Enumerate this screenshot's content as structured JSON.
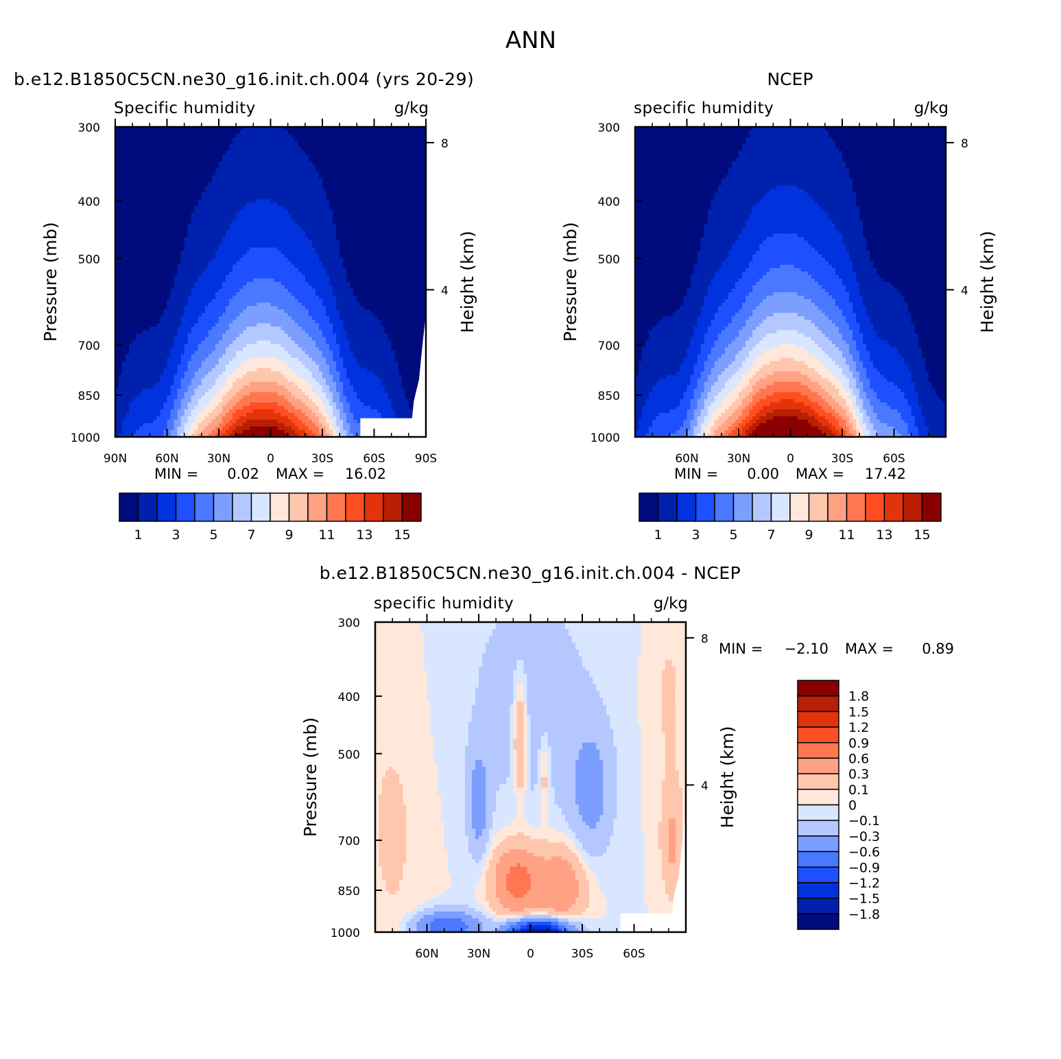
{
  "figure": {
    "title": "ANN"
  },
  "colors": {
    "seq": [
      "#000c7d",
      "#0021ae",
      "#0032de",
      "#1e50ff",
      "#4a78ff",
      "#7b9eff",
      "#b4c8ff",
      "#d8e6ff",
      "#ffe8da",
      "#ffc6ae",
      "#ffa284",
      "#ff7750",
      "#ff4f22",
      "#e3330b",
      "#b81f04",
      "#8a0000"
    ],
    "diff": [
      "#000c7d",
      "#0021ae",
      "#0032de",
      "#1e50ff",
      "#4a78ff",
      "#7b9eff",
      "#b4c8ff",
      "#d8e6ff",
      "#ffe8da",
      "#ffc6ae",
      "#ffa284",
      "#ff7750",
      "#ff4f22",
      "#e3330b",
      "#b81f04",
      "#8a0000"
    ]
  },
  "chart_data": [
    {
      "id": "model",
      "type": "heatmap",
      "title": "b.e12.B1850C5CN.ne30_g16.init.ch.004 (yrs 20-29)",
      "left_label": "Specific humidity",
      "units": "g/kg",
      "xlabel": "",
      "ylabel": "Pressure (mb)",
      "y2label": "Height (km)",
      "x_ticks": [
        "90N",
        "60N",
        "30N",
        "0",
        "30S",
        "60S",
        "90S"
      ],
      "x_tick_values": [
        90,
        60,
        30,
        0,
        -30,
        -60,
        -90
      ],
      "y_ticks": [
        "300",
        "400",
        "500",
        "700",
        "850",
        "1000"
      ],
      "y_tick_values": [
        300,
        400,
        500,
        700,
        850,
        1000
      ],
      "y2_ticks": [
        "8",
        "4"
      ],
      "y2_tick_values": [
        8,
        4
      ],
      "ylim": [
        1000,
        300
      ],
      "xlim": [
        90,
        -90
      ],
      "min_label": "MIN =",
      "min_value": "0.02",
      "max_label": "MAX =",
      "max_value": "16.02",
      "colorbar_labels": [
        "1",
        "3",
        "5",
        "7",
        "9",
        "11",
        "13",
        "15"
      ],
      "contour_levels": [
        1,
        2,
        3,
        4,
        5,
        6,
        7,
        8,
        9,
        10,
        11,
        12,
        13,
        14,
        15
      ],
      "field": {
        "kind": "q",
        "peak": 16.0,
        "scale_height": 0.42,
        "center_lat": 4,
        "lat_width": 38,
        "masked_topography": true
      }
    },
    {
      "id": "obs",
      "type": "heatmap",
      "title": "NCEP",
      "left_label": "specific humidity",
      "units": "g/kg",
      "xlabel": "",
      "ylabel": "Pressure (mb)",
      "y2label": "Height (km)",
      "x_ticks": [
        "60N",
        "30N",
        "0",
        "30S",
        "60S"
      ],
      "x_tick_values": [
        60,
        30,
        0,
        -30,
        -60
      ],
      "y_ticks": [
        "300",
        "400",
        "500",
        "700",
        "850",
        "1000"
      ],
      "y_tick_values": [
        300,
        400,
        500,
        700,
        850,
        1000
      ],
      "y2_ticks": [
        "8",
        "4"
      ],
      "y2_tick_values": [
        8,
        4
      ],
      "ylim": [
        1000,
        300
      ],
      "xlim": [
        90,
        -90
      ],
      "min_label": "MIN =",
      "min_value": "0.00",
      "max_label": "MAX =",
      "max_value": "17.42",
      "colorbar_labels": [
        "1",
        "3",
        "5",
        "7",
        "9",
        "11",
        "13",
        "15"
      ],
      "contour_levels": [
        1,
        2,
        3,
        4,
        5,
        6,
        7,
        8,
        9,
        10,
        11,
        12,
        13,
        14,
        15
      ],
      "field": {
        "kind": "q",
        "peak": 17.4,
        "scale_height": 0.43,
        "center_lat": 2,
        "lat_width": 40,
        "masked_topography": false
      }
    },
    {
      "id": "diff",
      "type": "heatmap",
      "title": "b.e12.B1850C5CN.ne30_g16.init.ch.004 - NCEP",
      "left_label": "specific humidity",
      "units": "g/kg",
      "xlabel": "",
      "ylabel": "Pressure (mb)",
      "y2label": "Height (km)",
      "x_ticks": [
        "60N",
        "30N",
        "0",
        "30S",
        "60S"
      ],
      "x_tick_values": [
        60,
        30,
        0,
        -30,
        -60
      ],
      "y_ticks": [
        "300",
        "400",
        "500",
        "700",
        "850",
        "1000"
      ],
      "y_tick_values": [
        300,
        400,
        500,
        700,
        850,
        1000
      ],
      "y2_ticks": [
        "8",
        "4"
      ],
      "y2_tick_values": [
        8,
        4
      ],
      "ylim": [
        1000,
        300
      ],
      "xlim": [
        90,
        -90
      ],
      "min_label": "MIN =",
      "min_value": "−2.10",
      "max_label": "MAX =",
      "max_value": "0.89",
      "colorbar_labels": [
        "1.8",
        "1.5",
        "1.2",
        "0.9",
        "0.6",
        "0.3",
        "0.1",
        "0",
        "−0.1",
        "−0.3",
        "−0.6",
        "−0.9",
        "−1.2",
        "−1.5",
        "−1.8"
      ],
      "contour_levels": [
        -1.8,
        -1.5,
        -1.2,
        -0.9,
        -0.6,
        -0.3,
        -0.1,
        0,
        0.1,
        0.3,
        0.6,
        0.9,
        1.2,
        1.5,
        1.8
      ],
      "field": {
        "kind": "diff",
        "masked_topography": true
      }
    }
  ]
}
